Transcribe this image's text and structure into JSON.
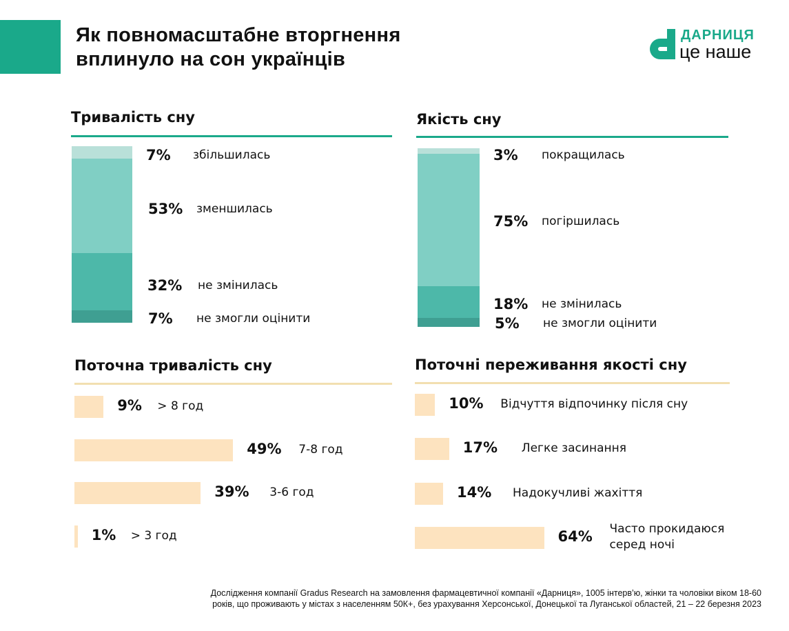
{
  "header": {
    "title_line1": "Як повномасштабне вторгнення",
    "title_line2": "вплинуло на сон українців"
  },
  "logo": {
    "line1": "ДАРНИЦЯ",
    "line2": "це наше",
    "color": "#1aa98a"
  },
  "colors": {
    "accent": "#1aa98a",
    "teal_line": "#1aa98a",
    "beige_line": "#f2dfb0",
    "bar_beige": "#fde3bf"
  },
  "chart_data": [
    {
      "type": "bar",
      "stacked": true,
      "title": "Тривалість сну",
      "segments": [
        {
          "label": "збільшилась",
          "value": 7,
          "text": "7%",
          "color": "#b9e0d9"
        },
        {
          "label": "зменшилась",
          "value": 53,
          "text": "53%",
          "color": "#80cfc4"
        },
        {
          "label": "не змінилась",
          "value": 32,
          "text": "32%",
          "color": "#4db8a9"
        },
        {
          "label": "не змогли оцінити",
          "value": 7,
          "text": "7%",
          "color": "#3f9f92"
        }
      ]
    },
    {
      "type": "bar",
      "stacked": true,
      "title": "Якість сну",
      "segments": [
        {
          "label": "покращилась",
          "value": 3,
          "text": "3%",
          "color": "#b9e0d9"
        },
        {
          "label": "погіршилась",
          "value": 75,
          "text": "75%",
          "color": "#80cfc4"
        },
        {
          "label": "не змінилась",
          "value": 18,
          "text": "18%",
          "color": "#4db8a9"
        },
        {
          "label": "не змогли оцінити",
          "value": 5,
          "text": "5%",
          "color": "#3f9f92"
        }
      ]
    },
    {
      "type": "bar",
      "orientation": "horizontal",
      "title": "Поточна тривалість сну",
      "categories": [
        "> 8 год",
        "7-8 год",
        "3-6 год",
        "> 3 год"
      ],
      "values": [
        9,
        49,
        39,
        1
      ],
      "texts": [
        "9%",
        "49%",
        "39%",
        "1%"
      ]
    },
    {
      "type": "bar",
      "orientation": "horizontal",
      "title": "Поточні переживання якості сну",
      "categories": [
        "Відчуття відпочинку після сну",
        "Легке засинання",
        "Надокучливі жахіття",
        "Часто прокидаюся серед ночі"
      ],
      "values": [
        10,
        17,
        14,
        64
      ],
      "texts": [
        "10%",
        "17%",
        "14%",
        "64%"
      ]
    }
  ],
  "footer": {
    "line1": "Дослідження компанії Gradus Research на замовлення фармацевтичної компанії «Дарниця», 1005 інтерв’ю, жінки та чоловіки віком 18-60",
    "line2": "років, що проживають у містах з населенням 50К+, без урахування Херсонської, Донецької та Луганської областей, 21 – 22 березня 2023"
  }
}
